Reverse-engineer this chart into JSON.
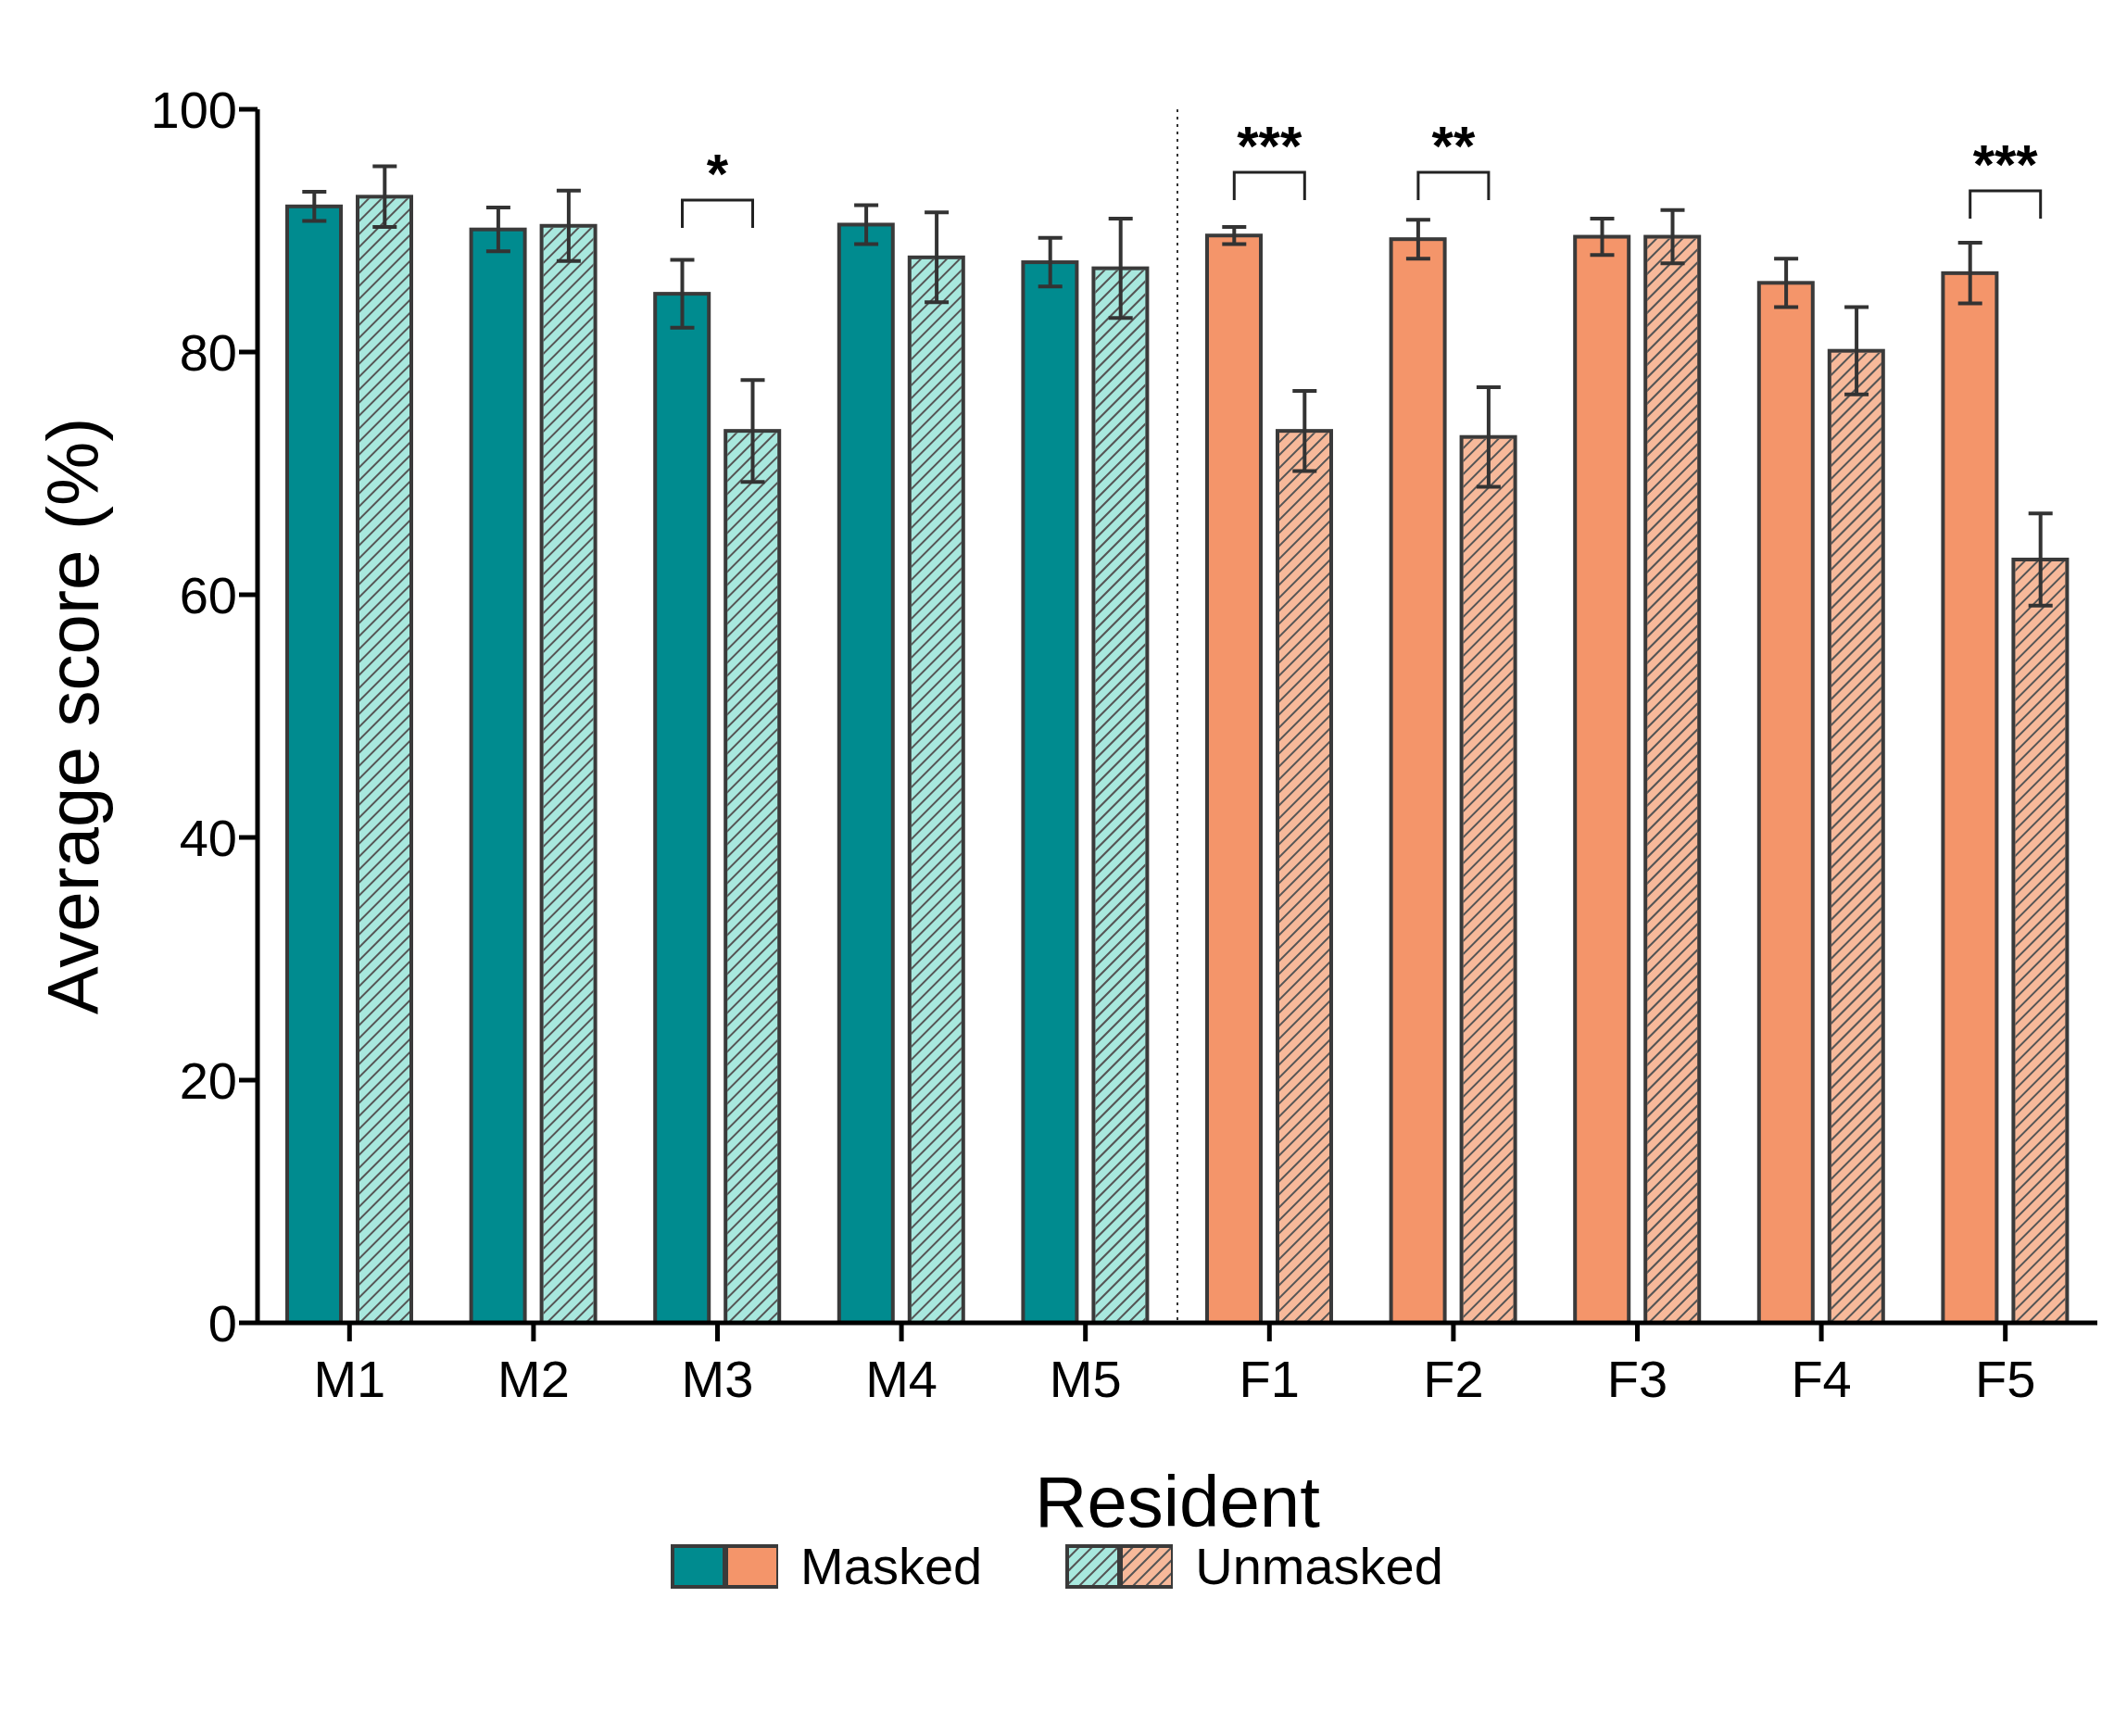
{
  "chart_data": {
    "type": "bar",
    "xlabel": "Resident",
    "ylabel": "Average score (%)",
    "categories": [
      "M1",
      "M2",
      "M3",
      "M4",
      "M5",
      "F1",
      "F2",
      "F3",
      "F4",
      "F5"
    ],
    "series": [
      {
        "name": "Masked",
        "colors": [
          "#008b8f",
          "#008b8f",
          "#008b8f",
          "#008b8f",
          "#008b8f",
          "#f4956a",
          "#f4956a",
          "#f4956a",
          "#f4956a",
          "#f4956a"
        ],
        "values": [
          92.0,
          90.1,
          84.8,
          90.5,
          87.4,
          89.6,
          89.3,
          89.5,
          85.7,
          86.5
        ],
        "errors": [
          1.2,
          1.8,
          2.8,
          1.6,
          2.0,
          0.7,
          1.6,
          1.5,
          2.0,
          2.5
        ]
      },
      {
        "name": "Unmasked",
        "colors": [
          "#a8e8de",
          "#a8e8de",
          "#a8e8de",
          "#a8e8de",
          "#a8e8de",
          "#f7b99a",
          "#f7b99a",
          "#f7b99a",
          "#f7b99a",
          "#f7b99a"
        ],
        "values": [
          92.8,
          90.4,
          73.5,
          87.8,
          86.9,
          73.5,
          73.0,
          89.5,
          80.1,
          62.9
        ],
        "errors": [
          2.5,
          2.9,
          4.2,
          3.7,
          4.1,
          3.3,
          4.1,
          2.2,
          3.6,
          3.8
        ]
      }
    ],
    "ylim": [
      0,
      100
    ],
    "yticks": [
      0,
      20,
      40,
      60,
      80,
      100
    ],
    "grid": false,
    "legend": "bottom",
    "annotations": [
      "*",
      "***",
      "**",
      "***"
    ]
  }
}
